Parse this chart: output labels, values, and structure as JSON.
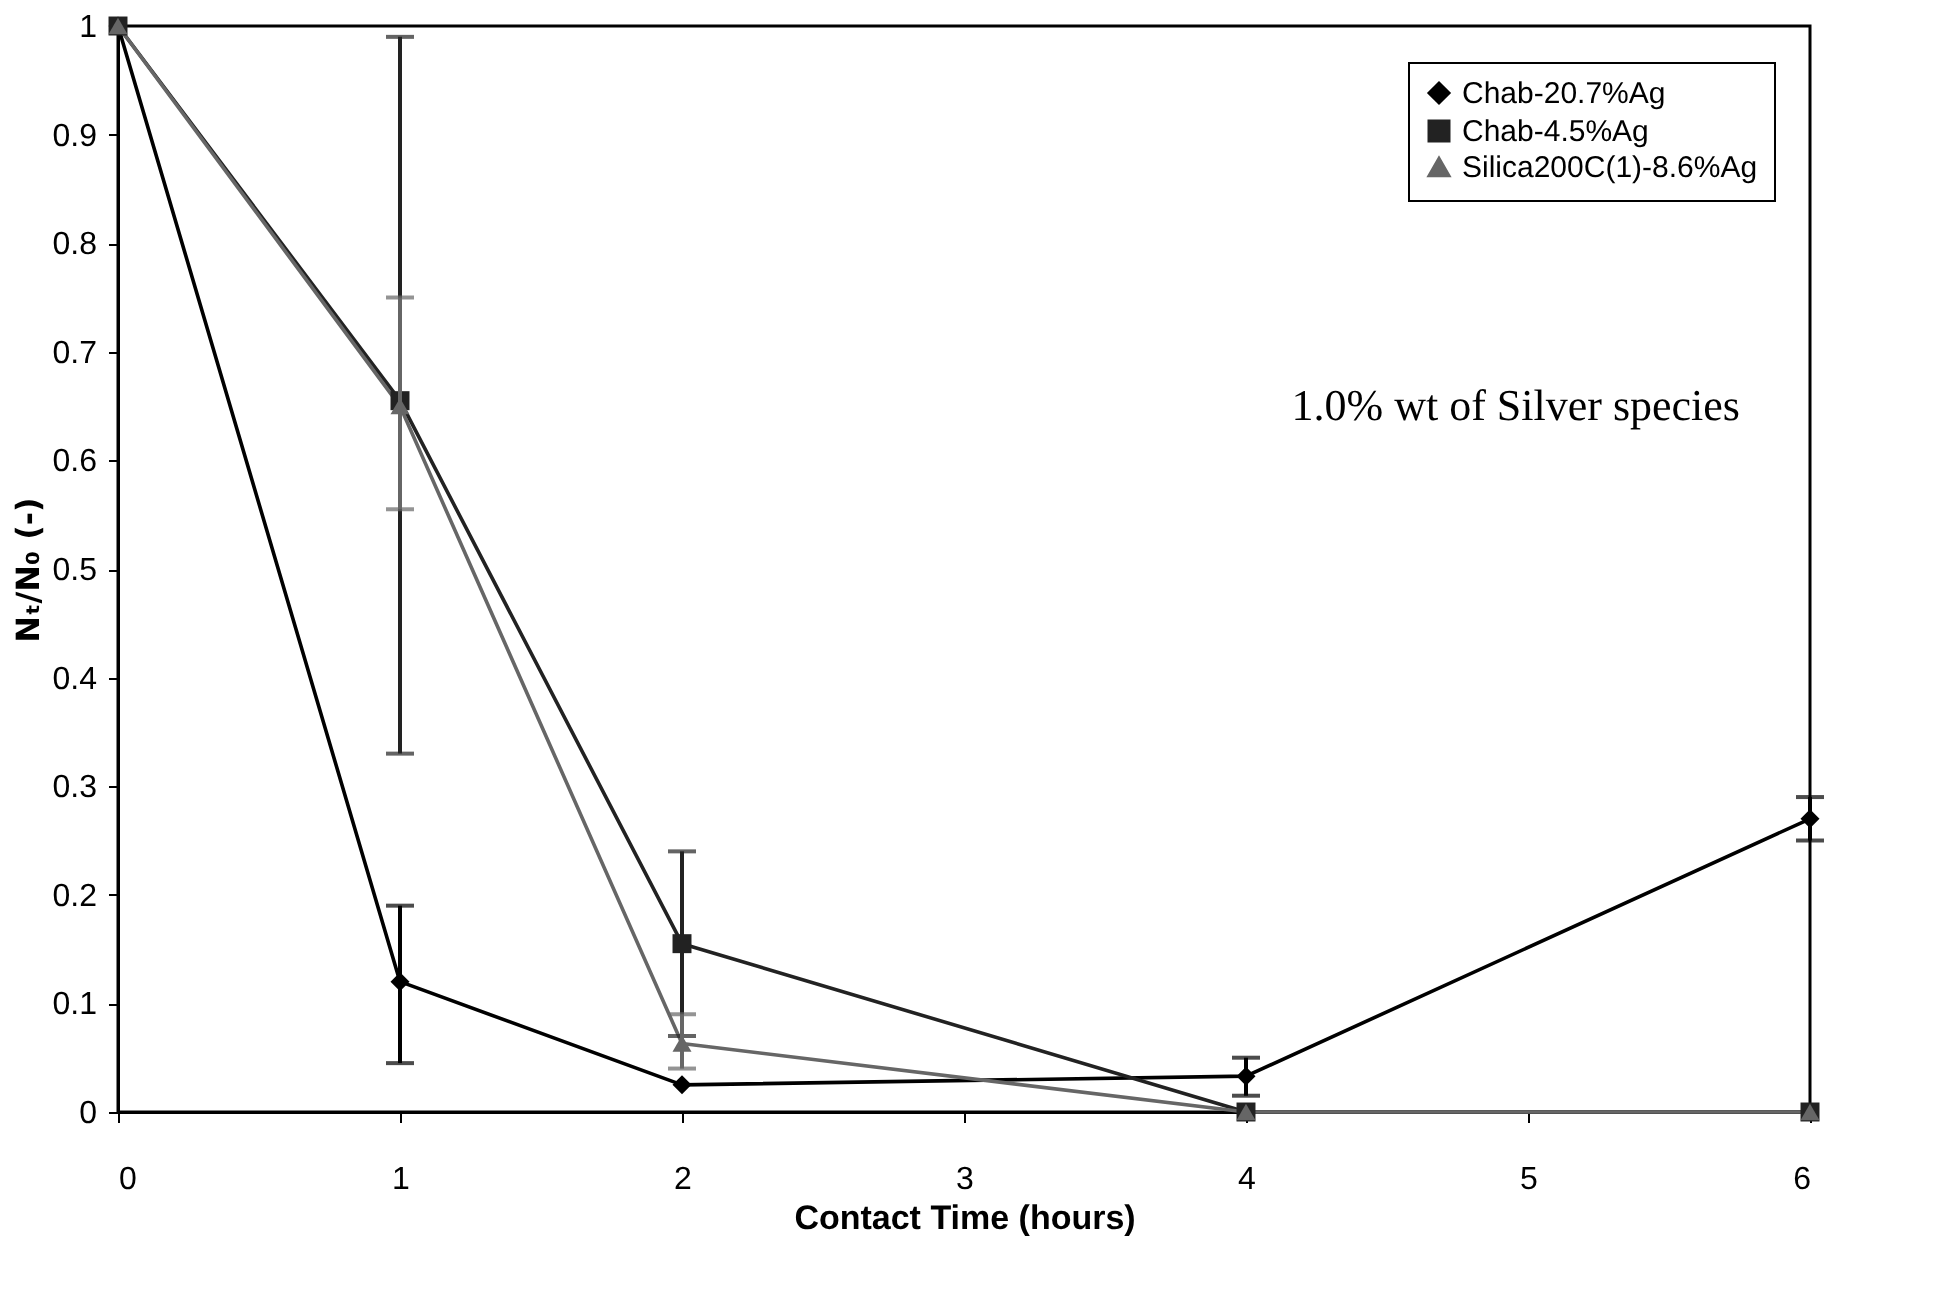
{
  "chart_data": {
    "type": "line",
    "xlabel": "Contact Time (hours)",
    "ylabel": "Nₜ/N₀ (-)",
    "x": [
      0,
      1,
      2,
      4,
      6
    ],
    "series": [
      {
        "name": "Chab-20.7%Ag",
        "color": "#000000",
        "marker": "diamond",
        "values": [
          1,
          0.12,
          0.025,
          0.033,
          0.27
        ],
        "errors": [
          null,
          [
            0.045,
            0.19
          ],
          null,
          [
            0.015,
            0.05
          ],
          [
            0.25,
            0.29
          ]
        ]
      },
      {
        "name": "Chab-4.5%Ag",
        "color": "#222222",
        "marker": "square",
        "values": [
          1,
          0.655,
          0.155,
          0,
          0
        ],
        "errors": [
          null,
          [
            0.33,
            0.99
          ],
          [
            0.07,
            0.24
          ],
          null,
          null
        ]
      },
      {
        "name": "Silica200C(1)-8.6%Ag",
        "color": "#666666",
        "marker": "triangle",
        "values": [
          1,
          0.65,
          0.063,
          0,
          0
        ],
        "errors": [
          null,
          [
            0.555,
            0.75
          ],
          [
            0.04,
            0.09
          ],
          null,
          null
        ]
      }
    ],
    "xlim": [
      0,
      6
    ],
    "xticks": [
      0,
      1,
      2,
      3,
      4,
      5,
      6
    ],
    "ylim": [
      0,
      1
    ],
    "yticks": [
      0,
      0.1,
      0.2,
      0.3,
      0.4,
      0.5,
      0.6,
      0.7,
      0.8,
      0.9,
      1
    ],
    "grid": false,
    "legend": "top right",
    "line_style": "solid",
    "annotations": [
      "1.0% wt of Silver species"
    ]
  }
}
